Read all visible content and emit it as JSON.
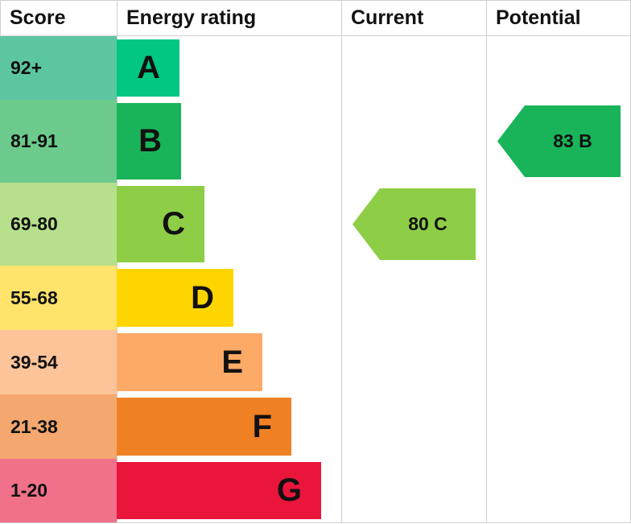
{
  "headers": {
    "score": "Score",
    "energy_rating": "Energy rating",
    "current": "Current",
    "potential": "Potential"
  },
  "chart_data": {
    "type": "bar",
    "bands": [
      {
        "score": "92+",
        "letter": "A",
        "bar_color": "#00c781",
        "score_color": "#5cc6a0"
      },
      {
        "score": "81-91",
        "letter": "B",
        "bar_color": "#19b459",
        "score_color": "#6ccb8c"
      },
      {
        "score": "69-80",
        "letter": "C",
        "bar_color": "#8dce46",
        "score_color": "#b7e08c"
      },
      {
        "score": "55-68",
        "letter": "D",
        "bar_color": "#ffd500",
        "score_color": "#ffe36b"
      },
      {
        "score": "39-54",
        "letter": "E",
        "bar_color": "#fcaa65",
        "score_color": "#fdc49a"
      },
      {
        "score": "21-38",
        "letter": "F",
        "bar_color": "#ef8023",
        "score_color": "#f4a86f"
      },
      {
        "score": "1-20",
        "letter": "G",
        "bar_color": "#e9153b",
        "score_color": "#f07189"
      }
    ],
    "current": {
      "value": 80,
      "band": "C",
      "label": "80 C",
      "color": "#8dce46"
    },
    "potential": {
      "value": 83,
      "band": "B",
      "label": "83 B",
      "color": "#19b459"
    }
  }
}
